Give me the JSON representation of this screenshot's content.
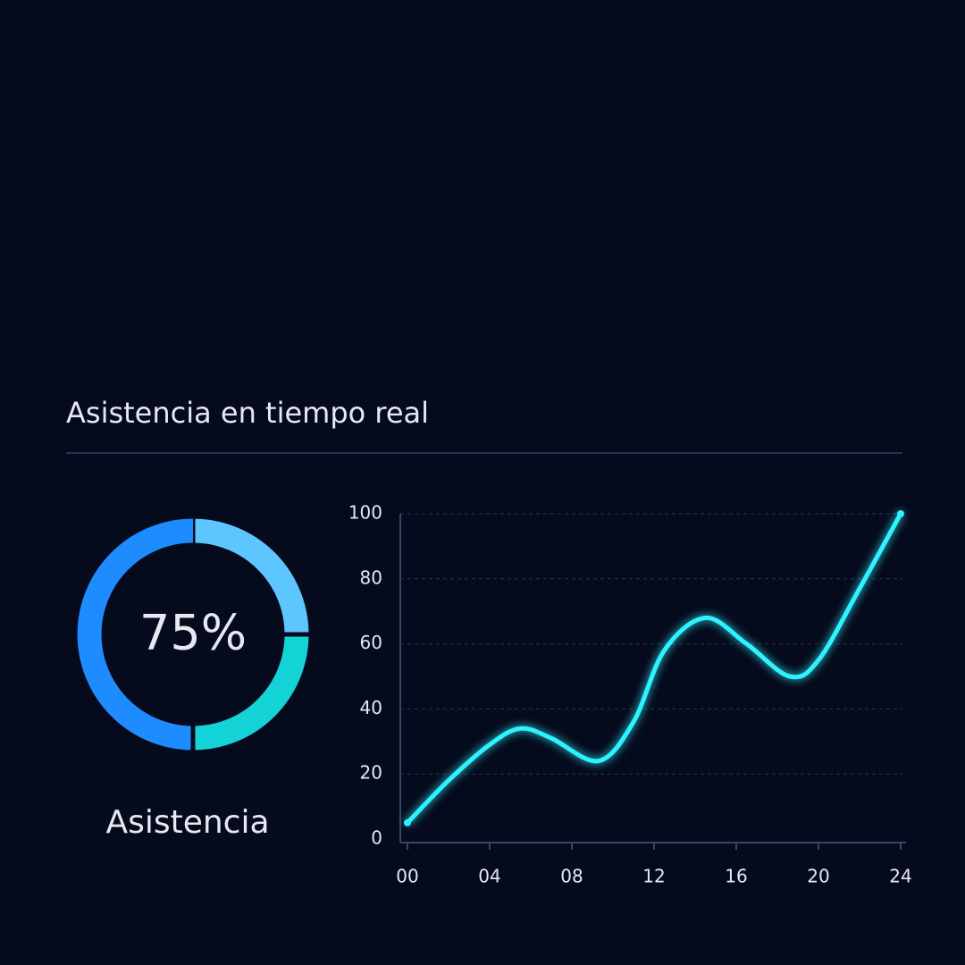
{
  "header": {
    "title": "Asistencia en tiempo real"
  },
  "chart_data": [
    {
      "type": "donut",
      "center_text": "75%",
      "label": "Asistencia",
      "categories": [
        null,
        null,
        null
      ],
      "values": [
        25,
        25,
        50
      ],
      "colors": [
        "#5ec6ff",
        "#14d3d6",
        "#1e8bff"
      ]
    },
    {
      "type": "line",
      "x": [
        0,
        2,
        4,
        5.5,
        7,
        9.3,
        11,
        12.5,
        14.5,
        16.5,
        18.6,
        20,
        22,
        24
      ],
      "series": [
        {
          "color": "#2ef2ff",
          "values": [
            5,
            18,
            29,
            34,
            31,
            24,
            36,
            58,
            68,
            60,
            50,
            55,
            77,
            100
          ]
        }
      ],
      "xlim": [
        0,
        24
      ],
      "xticks": [
        {
          "value": 0,
          "label": "00"
        },
        {
          "value": 4,
          "label": "04"
        },
        {
          "value": 8,
          "label": "08"
        },
        12,
        16,
        20,
        24
      ],
      "ylim": [
        0,
        100
      ],
      "yticks": [
        0,
        20,
        40,
        60,
        80,
        100
      ],
      "grid": true
    }
  ]
}
